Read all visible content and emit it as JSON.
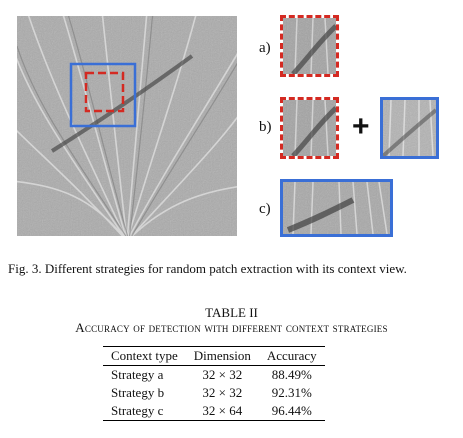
{
  "figure": {
    "row_labels": [
      "a)",
      "b)",
      "c)"
    ],
    "plus_symbol": "+",
    "colors": {
      "patch_border": "#d42a22",
      "context_border": "#3a6fd6",
      "texture_gray": "#a9a9a9"
    },
    "caption": "Fig. 3.  Different strategies for random patch extraction with its context view."
  },
  "table": {
    "label": "TABLE II",
    "title": "Accuracy of detection with different context strategies",
    "columns": [
      "Context type",
      "Dimension",
      "Accuracy"
    ],
    "rows": [
      [
        "Strategy a",
        "32 × 32",
        "88.49%"
      ],
      [
        "Strategy b",
        "32 × 32",
        "92.31%"
      ],
      [
        "Strategy c",
        "32 × 64",
        "96.44%"
      ]
    ]
  }
}
